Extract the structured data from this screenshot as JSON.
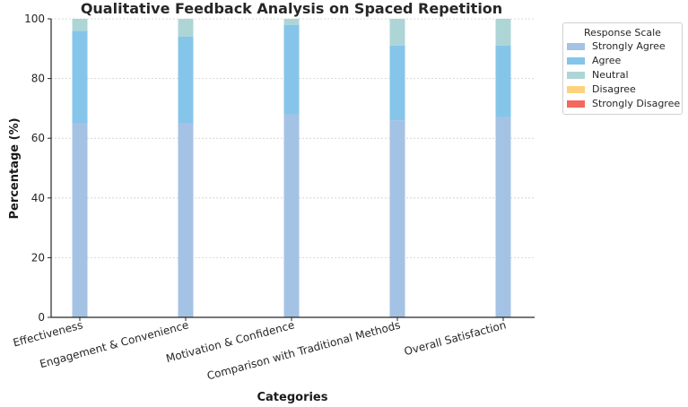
{
  "chart_data": {
    "type": "bar",
    "stacked": true,
    "title": "Qualitative Feedback Analysis on Spaced Repetition",
    "xlabel": "Categories",
    "ylabel": "Percentage (%)",
    "ylim": [
      0,
      100
    ],
    "yticks": [
      "0",
      "20",
      "40",
      "60",
      "80",
      "100"
    ],
    "grid": "horizontal",
    "legend_title": "Response Scale",
    "legend_position": "upper-right outside",
    "categories": [
      "Effectiveness",
      "Engagement & Convenience",
      "Motivation & Confidence",
      "Comparison with Traditional Methods",
      "Overall Satisfaction"
    ],
    "series": [
      {
        "name": "Strongly Agree",
        "color": "#a4c2e4",
        "values": [
          65,
          65,
          68,
          66,
          67
        ]
      },
      {
        "name": "Agree",
        "color": "#86c5ea",
        "values": [
          31,
          29,
          30,
          25,
          24
        ]
      },
      {
        "name": "Neutral",
        "color": "#aed5d6",
        "values": [
          4,
          6,
          2,
          9,
          9
        ]
      },
      {
        "name": "Disagree",
        "color": "#fdd27e",
        "values": [
          0,
          0,
          0,
          0,
          0
        ]
      },
      {
        "name": "Strongly Disagree",
        "color": "#f4685e",
        "values": [
          0,
          0,
          0,
          0,
          0
        ]
      }
    ]
  }
}
